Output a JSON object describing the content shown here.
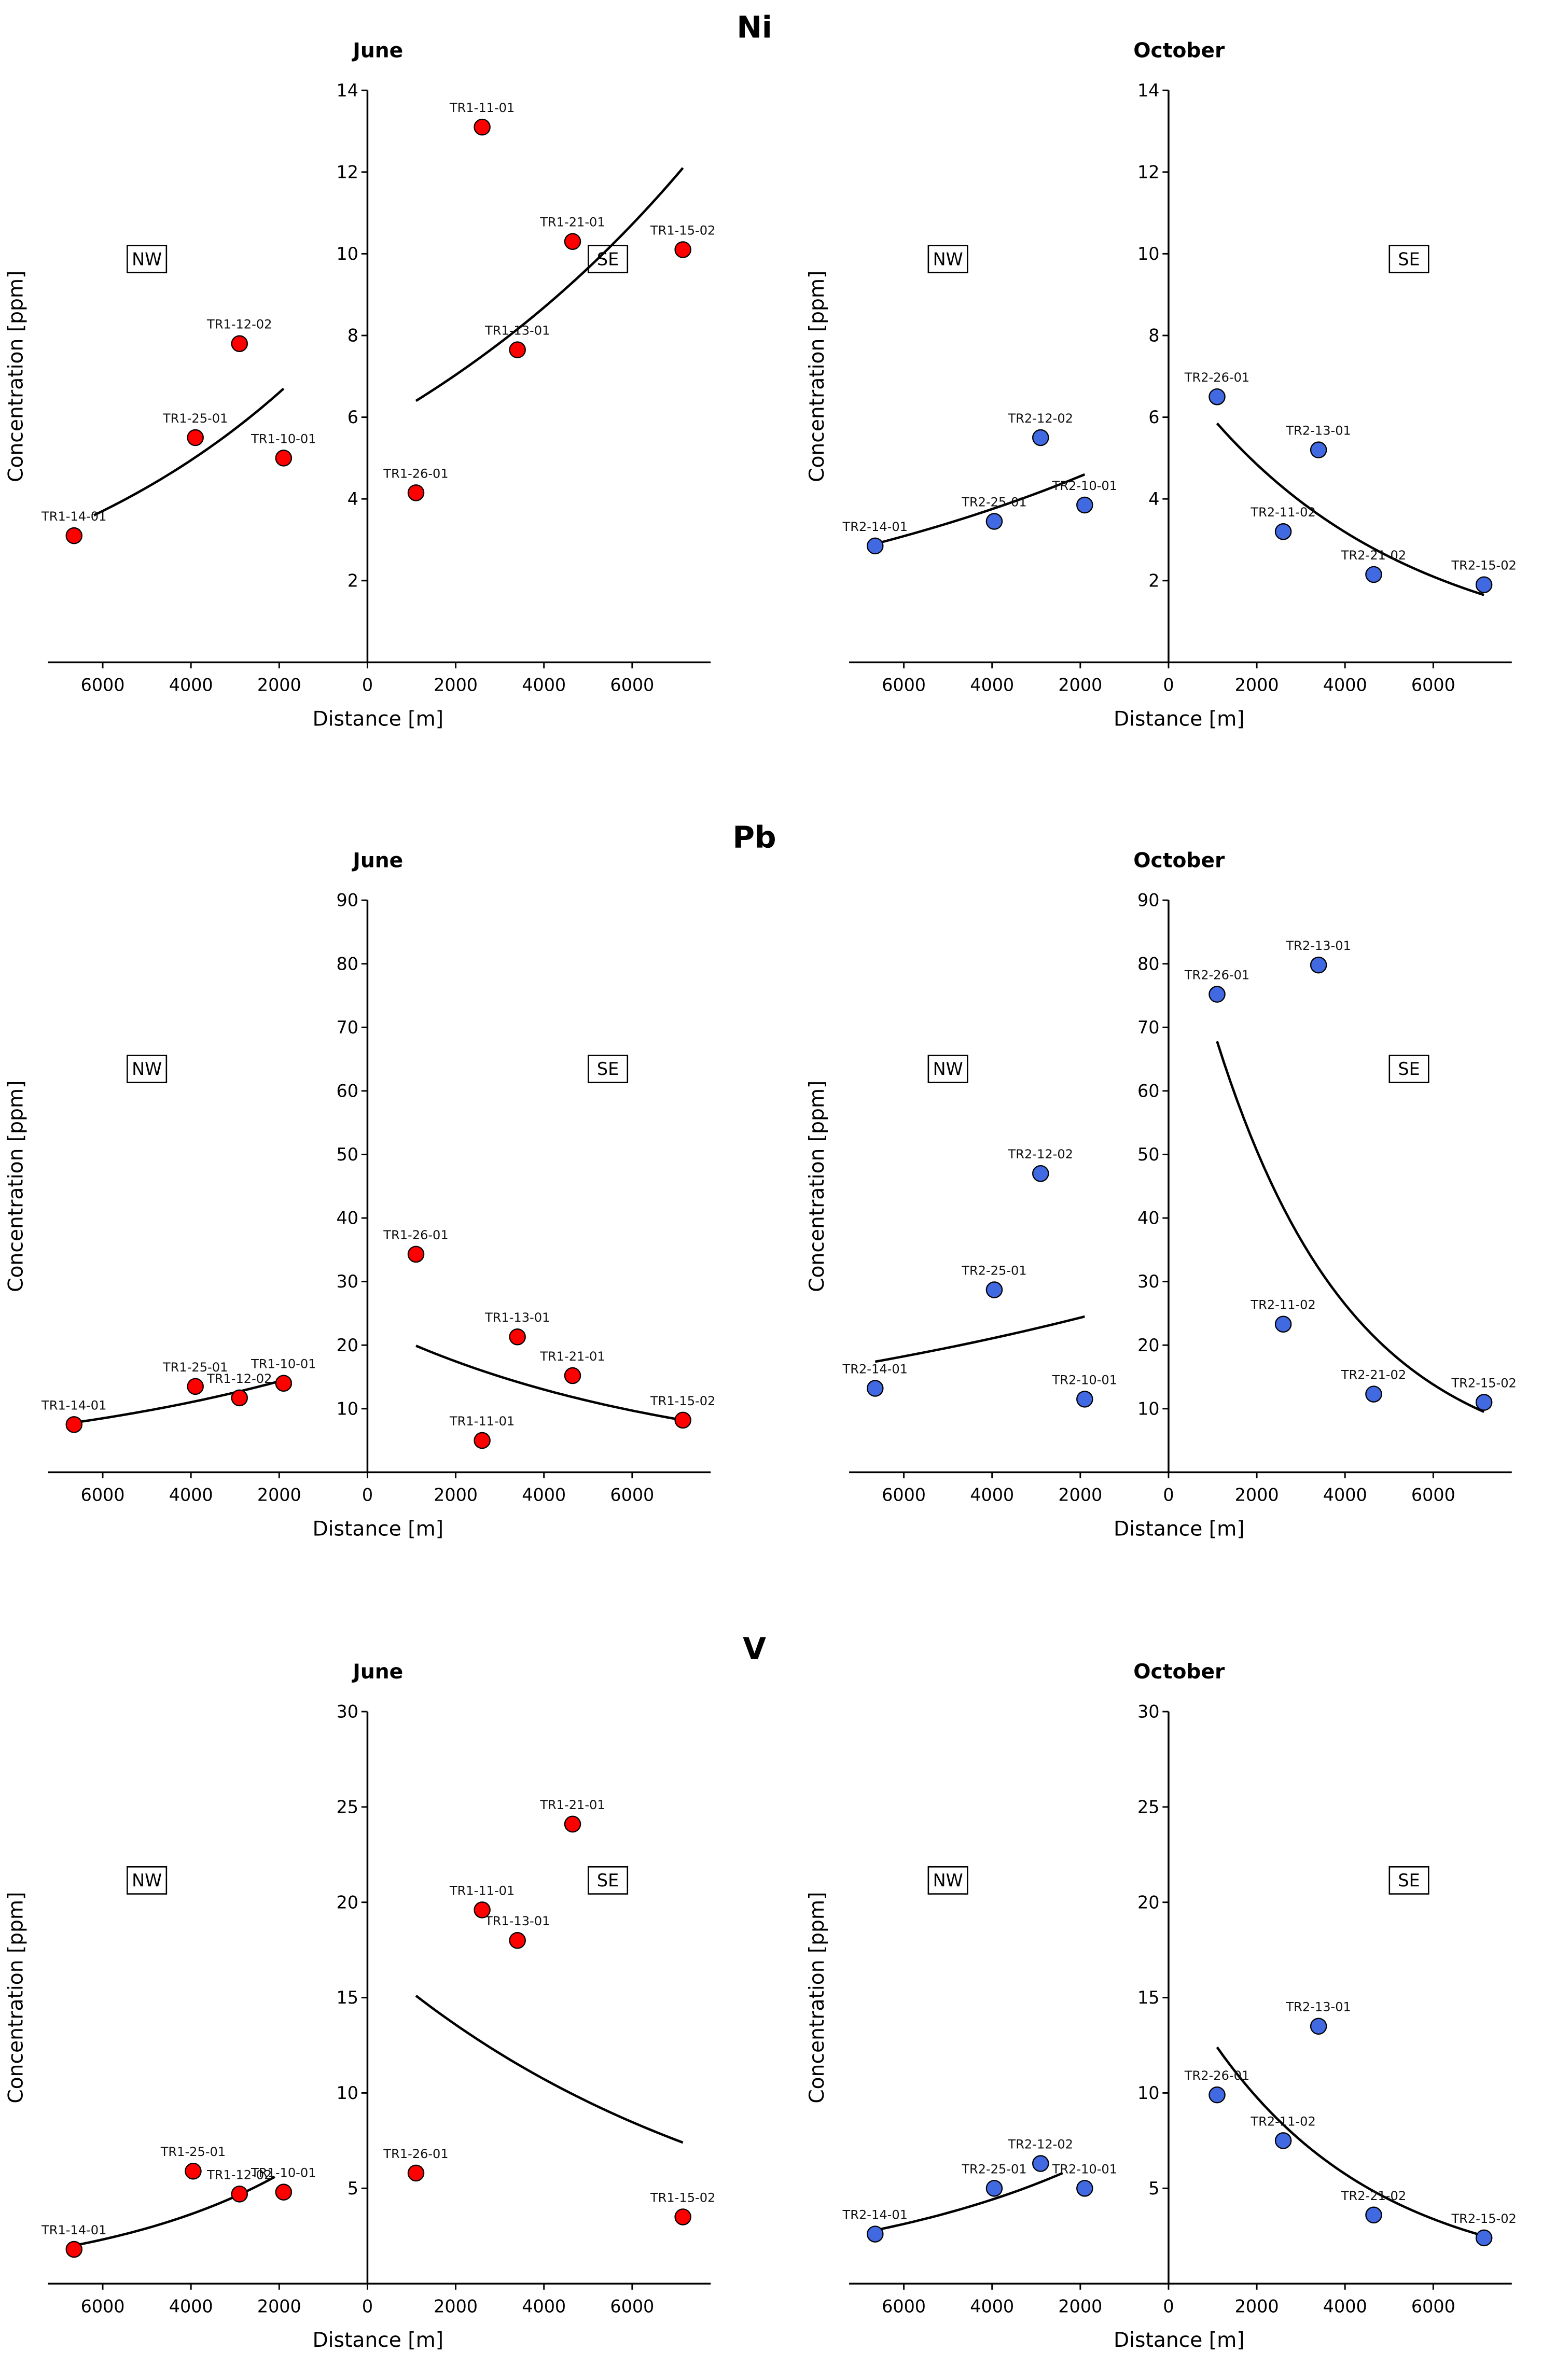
{
  "chart_data": [
    {
      "type": "scatter",
      "element": "Ni",
      "subtitle": "June",
      "xlabel": "Distance [m]",
      "ylabel": "Concentration [ppm]",
      "ylim": [
        0,
        14
      ],
      "yticks": [
        2,
        4,
        6,
        8,
        10,
        12,
        14
      ],
      "xlim": [
        -7240,
        7780
      ],
      "xticks": [
        -6000,
        -4000,
        -2000,
        0,
        2000,
        4000,
        6000
      ],
      "xtick_labels": [
        "6000",
        "4000",
        "2000",
        "0",
        "2000",
        "4000",
        "6000"
      ],
      "regions": [
        "NW",
        "SE"
      ],
      "color": "#ff0000",
      "points": [
        {
          "label": "TR1-14-01",
          "x": -6650,
          "y": 3.1
        },
        {
          "label": "TR1-25-01",
          "x": -3900,
          "y": 5.5
        },
        {
          "label": "TR1-12-02",
          "x": -2900,
          "y": 7.8
        },
        {
          "label": "TR1-10-01",
          "x": -1900,
          "y": 5.0
        },
        {
          "label": "TR1-26-01",
          "x": 1100,
          "y": 4.15
        },
        {
          "label": "TR1-11-01",
          "x": 2600,
          "y": 13.1
        },
        {
          "label": "TR1-13-01",
          "x": 3400,
          "y": 7.65
        },
        {
          "label": "TR1-21-01",
          "x": 4650,
          "y": 10.3
        },
        {
          "label": "TR1-15-02",
          "x": 7150,
          "y": 10.1
        }
      ],
      "fits": [
        {
          "from": [
            -6200,
            3.6
          ],
          "to": [
            -1900,
            6.7
          ]
        },
        {
          "from": [
            1100,
            6.4
          ],
          "to": [
            7150,
            12.1
          ]
        }
      ]
    },
    {
      "type": "scatter",
      "element": "",
      "subtitle": "October",
      "xlabel": "Distance [m]",
      "ylabel": "Concentration [ppm]",
      "ylim": [
        0,
        14
      ],
      "yticks": [
        2,
        4,
        6,
        8,
        10,
        12,
        14
      ],
      "xlim": [
        -7240,
        7780
      ],
      "xticks": [
        -6000,
        -4000,
        -2000,
        0,
        2000,
        4000,
        6000
      ],
      "xtick_labels": [
        "6000",
        "4000",
        "2000",
        "0",
        "2000",
        "4000",
        "6000"
      ],
      "regions": [
        "NW",
        "SE"
      ],
      "color": "#4169e1",
      "points": [
        {
          "label": "TR2-14-01",
          "x": -6650,
          "y": 2.85
        },
        {
          "label": "TR2-25-01",
          "x": -3950,
          "y": 3.45
        },
        {
          "label": "TR2-12-02",
          "x": -2900,
          "y": 5.5
        },
        {
          "label": "TR2-10-01",
          "x": -1900,
          "y": 3.85
        },
        {
          "label": "TR2-26-01",
          "x": 1100,
          "y": 6.5
        },
        {
          "label": "TR2-11-02",
          "x": 2600,
          "y": 3.2
        },
        {
          "label": "TR2-13-01",
          "x": 3400,
          "y": 5.2
        },
        {
          "label": "TR2-21-02",
          "x": 4650,
          "y": 2.15
        },
        {
          "label": "TR2-15-02",
          "x": 7150,
          "y": 1.9
        }
      ],
      "fits": [
        {
          "from": [
            -6650,
            2.9
          ],
          "to": [
            -1900,
            4.6
          ]
        },
        {
          "from": [
            1100,
            5.85
          ],
          "to": [
            7150,
            1.65
          ]
        }
      ]
    },
    {
      "type": "scatter",
      "element": "Pb",
      "subtitle": "June",
      "xlabel": "Distance [m]",
      "ylabel": "Concentration [ppm]",
      "ylim": [
        0,
        90
      ],
      "yticks": [
        10,
        20,
        30,
        40,
        50,
        60,
        70,
        80,
        90
      ],
      "xlim": [
        -7240,
        7780
      ],
      "xticks": [
        -6000,
        -4000,
        -2000,
        0,
        2000,
        4000,
        6000
      ],
      "xtick_labels": [
        "6000",
        "4000",
        "2000",
        "0",
        "2000",
        "4000",
        "6000"
      ],
      "regions": [
        "NW",
        "SE"
      ],
      "color": "#ff0000",
      "points": [
        {
          "label": "TR1-14-01",
          "x": -6650,
          "y": 7.5
        },
        {
          "label": "TR1-25-01",
          "x": -3900,
          "y": 13.5
        },
        {
          "label": "TR1-12-02",
          "x": -2900,
          "y": 11.7
        },
        {
          "label": "TR1-10-01",
          "x": -1900,
          "y": 14.0
        },
        {
          "label": "TR1-26-01",
          "x": 1100,
          "y": 34.3
        },
        {
          "label": "TR1-11-01",
          "x": 2600,
          "y": 5.0
        },
        {
          "label": "TR1-13-01",
          "x": 3400,
          "y": 21.3
        },
        {
          "label": "TR1-21-01",
          "x": 4650,
          "y": 15.2
        },
        {
          "label": "TR1-15-02",
          "x": 7150,
          "y": 8.2
        }
      ],
      "fits": [
        {
          "from": [
            -6650,
            7.8
          ],
          "to": [
            -1900,
            14.5
          ]
        },
        {
          "from": [
            1100,
            19.9
          ],
          "to": [
            7150,
            8.2
          ]
        }
      ]
    },
    {
      "type": "scatter",
      "element": "",
      "subtitle": "October",
      "xlabel": "Distance [m]",
      "ylabel": "Concentration [ppm]",
      "ylim": [
        0,
        90
      ],
      "yticks": [
        10,
        20,
        30,
        40,
        50,
        60,
        70,
        80,
        90
      ],
      "xlim": [
        -7240,
        7780
      ],
      "xticks": [
        -6000,
        -4000,
        -2000,
        0,
        2000,
        4000,
        6000
      ],
      "xtick_labels": [
        "6000",
        "4000",
        "2000",
        "0",
        "2000",
        "4000",
        "6000"
      ],
      "regions": [
        "NW",
        "SE"
      ],
      "color": "#4169e1",
      "points": [
        {
          "label": "TR2-14-01",
          "x": -6650,
          "y": 13.2
        },
        {
          "label": "TR2-25-01",
          "x": -3950,
          "y": 28.7
        },
        {
          "label": "TR2-12-02",
          "x": -2900,
          "y": 47.0
        },
        {
          "label": "TR2-10-01",
          "x": -1900,
          "y": 11.5
        },
        {
          "label": "TR2-26-01",
          "x": 1100,
          "y": 75.2
        },
        {
          "label": "TR2-11-02",
          "x": 2600,
          "y": 23.3
        },
        {
          "label": "TR2-13-01",
          "x": 3400,
          "y": 79.8
        },
        {
          "label": "TR2-21-02",
          "x": 4650,
          "y": 12.3
        },
        {
          "label": "TR2-15-02",
          "x": 7150,
          "y": 11.0
        }
      ],
      "fits": [
        {
          "from": [
            -6650,
            17.4
          ],
          "to": [
            -1900,
            24.5
          ]
        },
        {
          "from": [
            1100,
            67.8
          ],
          "to": [
            7150,
            9.5
          ]
        }
      ]
    },
    {
      "type": "scatter",
      "element": "V",
      "subtitle": "June",
      "xlabel": "Distance [m]",
      "ylabel": "Concentration [ppm]",
      "ylim": [
        0,
        30
      ],
      "yticks": [
        5,
        10,
        15,
        20,
        25,
        30
      ],
      "xlim": [
        -7240,
        7780
      ],
      "xticks": [
        -6000,
        -4000,
        -2000,
        0,
        2000,
        4000,
        6000
      ],
      "xtick_labels": [
        "6000",
        "4000",
        "2000",
        "0",
        "2000",
        "4000",
        "6000"
      ],
      "regions": [
        "NW",
        "SE"
      ],
      "color": "#ff0000",
      "points": [
        {
          "label": "TR1-14-01",
          "x": -6650,
          "y": 1.8
        },
        {
          "label": "TR1-25-01",
          "x": -3950,
          "y": 5.9
        },
        {
          "label": "TR1-12-02",
          "x": -2900,
          "y": 4.7
        },
        {
          "label": "TR1-10-01",
          "x": -1900,
          "y": 4.8
        },
        {
          "label": "TR1-26-01",
          "x": 1100,
          "y": 5.8
        },
        {
          "label": "TR1-11-01",
          "x": 2600,
          "y": 19.6
        },
        {
          "label": "TR1-13-01",
          "x": 3400,
          "y": 18.0
        },
        {
          "label": "TR1-21-01",
          "x": 4650,
          "y": 24.1
        },
        {
          "label": "TR1-15-02",
          "x": 7150,
          "y": 3.5
        }
      ],
      "fits": [
        {
          "from": [
            -6650,
            2.0
          ],
          "to": [
            -2100,
            5.6
          ]
        },
        {
          "from": [
            1100,
            15.1
          ],
          "to": [
            7150,
            7.4
          ]
        }
      ]
    },
    {
      "type": "scatter",
      "element": "",
      "subtitle": "October",
      "xlabel": "Distance [m]",
      "ylabel": "Concentration [ppm]",
      "ylim": [
        0,
        30
      ],
      "yticks": [
        5,
        10,
        15,
        20,
        25,
        30
      ],
      "xlim": [
        -7240,
        7780
      ],
      "xticks": [
        -6000,
        -4000,
        -2000,
        0,
        2000,
        4000,
        6000
      ],
      "xtick_labels": [
        "6000",
        "4000",
        "2000",
        "0",
        "2000",
        "4000",
        "6000"
      ],
      "regions": [
        "NW",
        "SE"
      ],
      "color": "#4169e1",
      "points": [
        {
          "label": "TR2-14-01",
          "x": -6650,
          "y": 2.6
        },
        {
          "label": "TR2-25-01",
          "x": -3950,
          "y": 5.0
        },
        {
          "label": "TR2-12-02",
          "x": -2900,
          "y": 6.3
        },
        {
          "label": "TR2-10-01",
          "x": -1900,
          "y": 5.0
        },
        {
          "label": "TR2-26-01",
          "x": 1100,
          "y": 9.9
        },
        {
          "label": "TR2-11-02",
          "x": 2600,
          "y": 7.5
        },
        {
          "label": "TR2-13-01",
          "x": 3400,
          "y": 13.5
        },
        {
          "label": "TR2-21-02",
          "x": 4650,
          "y": 3.6
        },
        {
          "label": "TR2-15-02",
          "x": 7150,
          "y": 2.4
        }
      ],
      "fits": [
        {
          "from": [
            -6650,
            2.8
          ],
          "to": [
            -2400,
            5.8
          ]
        },
        {
          "from": [
            1100,
            12.4
          ],
          "to": [
            7150,
            2.5
          ]
        }
      ]
    }
  ]
}
